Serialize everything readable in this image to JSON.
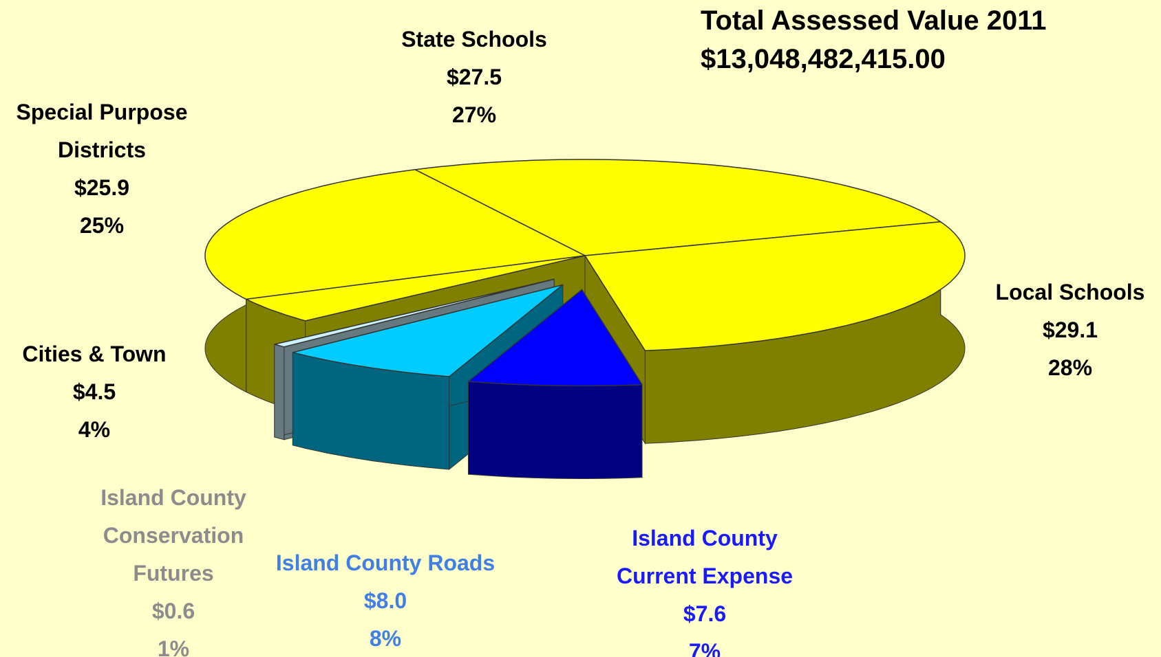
{
  "chart_data": {
    "type": "pie3d",
    "title": "Total Assessed Value 2011",
    "subtitle": "$13,048,482,415.00",
    "categories": [
      "Local Schools",
      "Island County Current Expense",
      "Island County Roads",
      "Island County Conservation Futures",
      "Cities & Town",
      "Special Purpose Districts",
      "State Schools"
    ],
    "values": [
      29.1,
      7.6,
      8.0,
      0.6,
      4.5,
      25.9,
      27.5
    ],
    "value_labels": [
      "$29.1",
      "$7.6",
      "$8.0",
      "$0.6",
      "$4.5",
      "$25.9",
      "$27.5"
    ],
    "percents": [
      28,
      7,
      8,
      1,
      4,
      25,
      27
    ],
    "percent_labels": [
      "28%",
      "7%",
      "8%",
      "1%",
      "4%",
      "25%",
      "27%"
    ],
    "colors": [
      "#ffff00",
      "#0000ff",
      "#00ccff",
      "#ccf2ff",
      "#ffff00",
      "#ffff00",
      "#ffff00"
    ],
    "label_colors": [
      "#000000",
      "#1a1aff",
      "#3f7fe6",
      "#8c8c8c",
      "#000000",
      "#000000",
      "#000000"
    ]
  }
}
